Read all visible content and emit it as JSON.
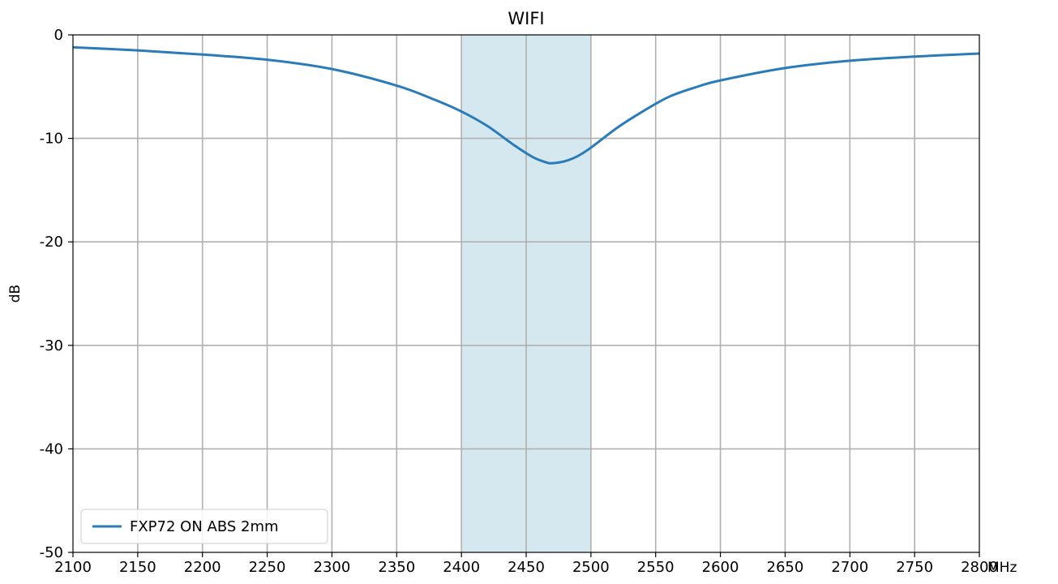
{
  "chart_data": {
    "type": "line",
    "title": "WIFI",
    "xlabel": "MHz",
    "ylabel": "dB",
    "xlim": [
      2100,
      2800
    ],
    "ylim": [
      -50,
      0
    ],
    "xticks": [
      2100,
      2150,
      2200,
      2250,
      2300,
      2350,
      2400,
      2450,
      2500,
      2550,
      2600,
      2650,
      2700,
      2750,
      2800
    ],
    "yticks": [
      0,
      -10,
      -20,
      -30,
      -40,
      -50
    ],
    "grid": true,
    "legend_position": "lower-left",
    "highlight_band": {
      "x_start": 2400,
      "x_end": 2500,
      "color": "#d5e8f0"
    },
    "series": [
      {
        "name": "FXP72 ON ABS 2mm",
        "color": "#2b7bb9",
        "x": [
          2100,
          2150,
          2200,
          2250,
          2300,
          2350,
          2380,
          2400,
          2420,
          2440,
          2455,
          2465,
          2470,
          2480,
          2490,
          2500,
          2520,
          2540,
          2560,
          2580,
          2600,
          2650,
          2700,
          2750,
          2800
        ],
        "y": [
          -1.2,
          -1.5,
          -1.9,
          -2.4,
          -3.3,
          -4.9,
          -6.3,
          -7.4,
          -8.8,
          -10.6,
          -11.8,
          -12.3,
          -12.4,
          -12.2,
          -11.7,
          -10.9,
          -9.0,
          -7.4,
          -6.0,
          -5.1,
          -4.4,
          -3.2,
          -2.5,
          -2.1,
          -1.8
        ]
      }
    ]
  }
}
